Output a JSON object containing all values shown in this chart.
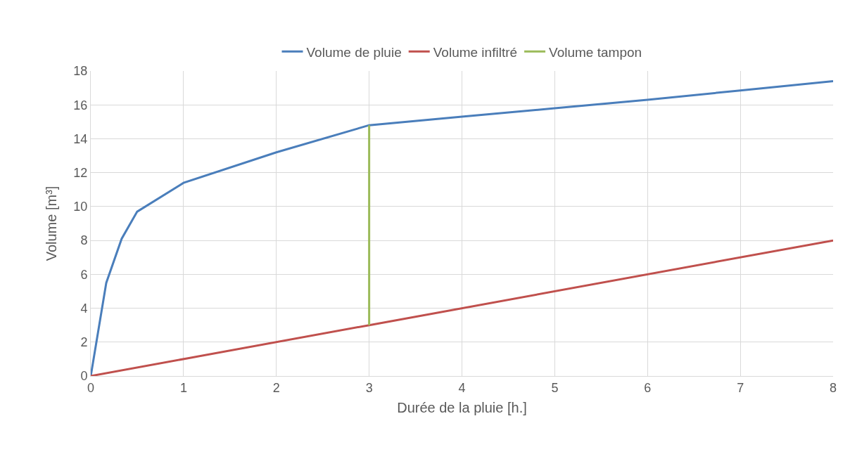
{
  "chart_data": {
    "type": "line",
    "xlabel": "Durée de la pluie [h.]",
    "ylabel": "Volume [m³]",
    "xlim": [
      0,
      8
    ],
    "xticks": [
      0,
      1,
      2,
      3,
      4,
      5,
      6,
      7,
      8
    ],
    "ylim": [
      0,
      18
    ],
    "yticks": [
      0,
      2,
      4,
      6,
      8,
      10,
      12,
      14,
      16,
      18
    ],
    "grid": true,
    "legend": "top",
    "marker": "none",
    "line_style": "solid",
    "series": [
      {
        "name": "Volume de pluie",
        "color": "#4a7ebb",
        "x": [
          0,
          0.167,
          0.333,
          0.5,
          1,
          2,
          3,
          4,
          5,
          6,
          7,
          8
        ],
        "values": [
          0,
          5.5,
          8.1,
          9.7,
          11.4,
          13.2,
          14.8,
          15.3,
          15.8,
          16.3,
          16.85,
          17.4
        ]
      },
      {
        "name": "Volume infiltré",
        "color": "#c0504d",
        "x": [
          0,
          3,
          8
        ],
        "values": [
          0,
          3,
          8
        ]
      },
      {
        "name": "Volume tampon",
        "color": "#9bbb59",
        "x": [
          3,
          3
        ],
        "values": [
          3,
          14.8
        ]
      }
    ]
  }
}
